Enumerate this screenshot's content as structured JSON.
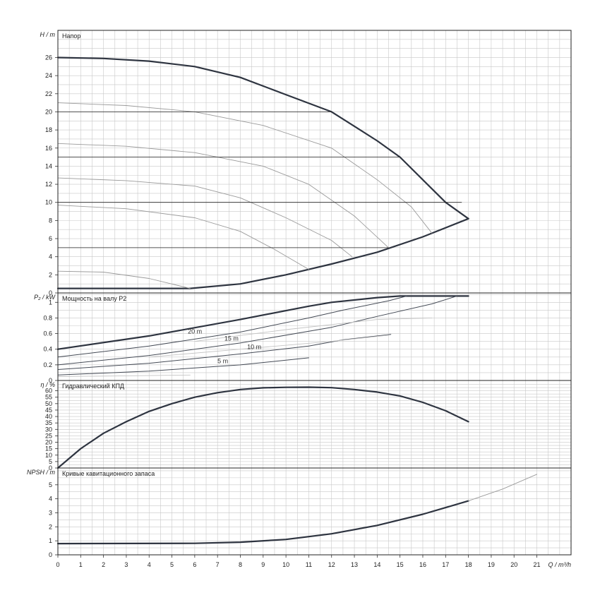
{
  "chart_data": {
    "type": "line",
    "x": {
      "label": "Q / m³/h",
      "range": [
        0,
        22.5
      ],
      "ticks": [
        0,
        1,
        2,
        3,
        4,
        5,
        6,
        7,
        8,
        9,
        10,
        11,
        12,
        13,
        14,
        15,
        16,
        17,
        18,
        19,
        20,
        21
      ]
    },
    "panels": [
      {
        "id": "head",
        "title": "Напор",
        "ylabel": "H / m",
        "ylim": [
          0,
          29
        ],
        "yticks": [
          0,
          2,
          4,
          6,
          8,
          10,
          12,
          14,
          16,
          18,
          20,
          22,
          24,
          26
        ],
        "grid": true,
        "series": [
          {
            "style": "main",
            "points": [
              [
                0,
                26
              ],
              [
                2,
                25.9
              ],
              [
                4,
                25.6
              ],
              [
                6,
                25
              ],
              [
                8,
                23.8
              ],
              [
                10,
                21.9
              ],
              [
                12,
                20
              ],
              [
                14,
                16.8
              ],
              [
                15,
                15
              ],
              [
                16,
                12.5
              ],
              [
                17,
                10
              ],
              [
                18,
                8.2
              ]
            ]
          },
          {
            "style": "main",
            "points": [
              [
                0,
                0.5
              ],
              [
                5.8,
                0.5
              ],
              [
                8,
                1
              ],
              [
                10,
                2
              ],
              [
                12,
                3.2
              ],
              [
                14,
                4.5
              ],
              [
                16,
                6.2
              ],
              [
                18,
                8.2
              ]
            ]
          },
          {
            "style": "thin",
            "points": [
              [
                0,
                21
              ],
              [
                3,
                20.7
              ],
              [
                6,
                20
              ],
              [
                9,
                18.5
              ],
              [
                12,
                16
              ],
              [
                14,
                12.5
              ],
              [
                15.5,
                9.5
              ],
              [
                16.4,
                6.6
              ]
            ]
          },
          {
            "style": "thin",
            "points": [
              [
                0,
                16.5
              ],
              [
                3,
                16.2
              ],
              [
                6,
                15.5
              ],
              [
                9,
                14
              ],
              [
                11,
                12
              ],
              [
                13,
                8.5
              ],
              [
                14.5,
                5
              ]
            ]
          },
          {
            "style": "thin",
            "points": [
              [
                0,
                12.7
              ],
              [
                3,
                12.4
              ],
              [
                6,
                11.8
              ],
              [
                8,
                10.5
              ],
              [
                10,
                8.3
              ],
              [
                12,
                5.8
              ],
              [
                12.9,
                4
              ]
            ]
          },
          {
            "style": "thin",
            "points": [
              [
                0,
                9.7
              ],
              [
                3,
                9.3
              ],
              [
                6,
                8.3
              ],
              [
                8,
                6.8
              ],
              [
                9.5,
                4.8
              ],
              [
                11,
                2.6
              ]
            ]
          },
          {
            "style": "thin",
            "points": [
              [
                0,
                2.4
              ],
              [
                2,
                2.3
              ],
              [
                4,
                1.6
              ],
              [
                5.8,
                0.5
              ]
            ]
          },
          {
            "style": "hline",
            "points": [
              [
                0,
                20
              ],
              [
                12,
                20
              ]
            ]
          },
          {
            "style": "hline",
            "points": [
              [
                0,
                15
              ],
              [
                15,
                15
              ]
            ]
          },
          {
            "style": "hline",
            "points": [
              [
                0,
                10
              ],
              [
                17.7,
                10
              ]
            ]
          },
          {
            "style": "hline",
            "points": [
              [
                0,
                5
              ],
              [
                14.5,
                5
              ]
            ]
          }
        ]
      },
      {
        "id": "power",
        "title": "Мощность на валу P2",
        "ylabel": "P₂ / kW",
        "ylim": [
          0,
          1.12
        ],
        "yticks": [
          0,
          0.2,
          0.4,
          0.6,
          0.8,
          1
        ],
        "grid": true,
        "series": [
          {
            "style": "main",
            "points": [
              [
                0,
                0.4
              ],
              [
                4,
                0.57
              ],
              [
                8,
                0.78
              ],
              [
                11,
                0.95
              ],
              [
                12,
                1
              ],
              [
                14,
                1.06
              ],
              [
                15,
                1.08
              ],
              [
                18,
                1.08
              ]
            ]
          },
          {
            "style": "medium",
            "points": [
              [
                0,
                0.3
              ],
              [
                4,
                0.44
              ],
              [
                8,
                0.62
              ],
              [
                11,
                0.8
              ],
              [
                12.5,
                0.9
              ],
              [
                14.5,
                1.02
              ],
              [
                15.3,
                1.08
              ]
            ]
          },
          {
            "style": "medium",
            "points": [
              [
                0,
                0.2
              ],
              [
                4,
                0.32
              ],
              [
                8,
                0.48
              ],
              [
                12,
                0.68
              ],
              [
                14,
                0.82
              ],
              [
                16.4,
                0.98
              ],
              [
                17.5,
                1.08
              ]
            ]
          },
          {
            "style": "medium",
            "points": [
              [
                0,
                0.14
              ],
              [
                4,
                0.22
              ],
              [
                8,
                0.34
              ],
              [
                11,
                0.44
              ],
              [
                12.5,
                0.52
              ],
              [
                14.6,
                0.59
              ]
            ]
          },
          {
            "style": "medium",
            "points": [
              [
                0,
                0.07
              ],
              [
                4,
                0.12
              ],
              [
                8,
                0.2
              ],
              [
                10,
                0.26
              ],
              [
                11,
                0.29
              ]
            ]
          },
          {
            "style": "light",
            "points": [
              [
                6,
                0.5
              ],
              [
                10,
                0.65
              ],
              [
                14,
                0.78
              ],
              [
                16.4,
                0.8
              ]
            ]
          },
          {
            "style": "light",
            "points": [
              [
                4,
                0.3
              ],
              [
                8,
                0.4
              ],
              [
                12,
                0.5
              ],
              [
                14.5,
                0.58
              ]
            ]
          },
          {
            "style": "light",
            "points": [
              [
                0,
                0.05
              ],
              [
                3,
                0.06
              ],
              [
                5.8,
                0.07
              ]
            ]
          }
        ],
        "annotations": [
          {
            "text": "20 m",
            "x": 5.7,
            "y": 0.6
          },
          {
            "text": "15 m",
            "x": 7.3,
            "y": 0.51
          },
          {
            "text": "10 m",
            "x": 8.3,
            "y": 0.4
          },
          {
            "text": "5 m",
            "x": 7.0,
            "y": 0.22
          }
        ]
      },
      {
        "id": "eff",
        "title": "Гидравлический КПД",
        "ylabel": "η / %",
        "ylim": [
          0,
          68
        ],
        "yticks": [
          0,
          5,
          10,
          15,
          20,
          25,
          30,
          35,
          40,
          45,
          50,
          55,
          60
        ],
        "grid": true,
        "series": [
          {
            "style": "main",
            "points": [
              [
                0,
                0
              ],
              [
                1,
                15
              ],
              [
                2,
                27
              ],
              [
                3,
                36
              ],
              [
                4,
                44
              ],
              [
                5,
                50
              ],
              [
                6,
                55
              ],
              [
                7,
                58.5
              ],
              [
                8,
                61
              ],
              [
                9,
                62.3
              ],
              [
                10,
                62.7
              ],
              [
                11,
                62.8
              ],
              [
                12,
                62.4
              ],
              [
                13,
                61
              ],
              [
                14,
                59
              ],
              [
                15,
                56
              ],
              [
                16,
                51
              ],
              [
                17,
                44.5
              ],
              [
                18,
                36
              ]
            ]
          }
        ]
      },
      {
        "id": "npsh",
        "title": "Кривые кавитационного запаса",
        "ylabel": "NPSH / m",
        "ylim": [
          0,
          6.2
        ],
        "yticks": [
          0,
          1,
          2,
          3,
          4,
          5
        ],
        "grid": true,
        "series": [
          {
            "style": "main",
            "points": [
              [
                0,
                0.8
              ],
              [
                6,
                0.82
              ],
              [
                8,
                0.9
              ],
              [
                10,
                1.1
              ],
              [
                12,
                1.5
              ],
              [
                14,
                2.1
              ],
              [
                16,
                2.9
              ],
              [
                18,
                3.85
              ]
            ]
          },
          {
            "style": "thin",
            "points": [
              [
                18,
                3.85
              ],
              [
                19.5,
                4.7
              ],
              [
                21,
                5.75
              ]
            ]
          }
        ]
      }
    ]
  }
}
